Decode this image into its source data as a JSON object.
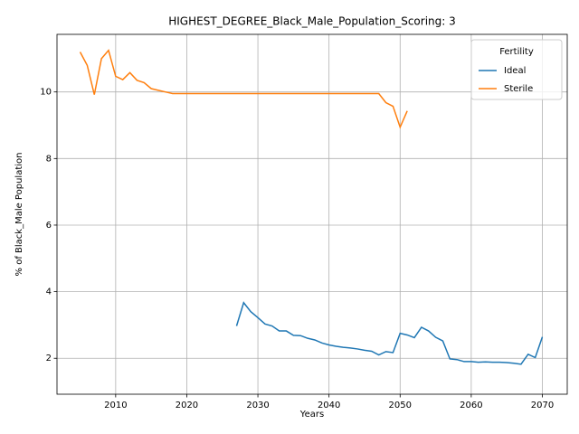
{
  "chart_data": {
    "type": "line",
    "title": "HIGHEST_DEGREE_Black_Male_Population_Scoring: 3",
    "xlabel": "Years",
    "ylabel": "% of Black_Male Population",
    "legend_title": "Fertility",
    "legend": "upper right",
    "grid": true,
    "x": [
      2005,
      2006,
      2007,
      2008,
      2009,
      2010,
      2011,
      2012,
      2013,
      2014,
      2015,
      2016,
      2017,
      2018,
      2019,
      2020,
      2021,
      2022,
      2023,
      2024,
      2025,
      2026,
      2027,
      2028,
      2029,
      2030,
      2031,
      2032,
      2033,
      2034,
      2035,
      2036,
      2037,
      2038,
      2039,
      2040,
      2041,
      2042,
      2043,
      2044,
      2045,
      2046,
      2047,
      2048,
      2049,
      2050,
      2051,
      2052,
      2053,
      2054,
      2055,
      2056,
      2057,
      2058,
      2059,
      2060,
      2061,
      2062,
      2063,
      2064,
      2065,
      2066,
      2067,
      2068,
      2069,
      2070
    ],
    "series": [
      {
        "name": "Ideal",
        "color": "#1f77b4",
        "values": [
          null,
          null,
          null,
          null,
          null,
          null,
          null,
          null,
          null,
          null,
          null,
          null,
          null,
          null,
          null,
          null,
          null,
          null,
          null,
          null,
          null,
          null,
          2.97,
          3.67,
          3.4,
          3.22,
          3.03,
          2.97,
          2.82,
          2.82,
          2.69,
          2.68,
          2.6,
          2.55,
          2.46,
          2.4,
          2.36,
          2.33,
          2.31,
          2.28,
          2.24,
          2.21,
          2.1,
          2.2,
          2.17,
          2.75,
          2.7,
          2.62,
          2.93,
          2.82,
          2.63,
          2.52,
          1.98,
          1.96,
          1.9,
          1.9,
          1.88,
          1.89,
          1.88,
          1.88,
          1.87,
          1.85,
          1.82,
          2.12,
          2.02,
          2.64
        ]
      },
      {
        "name": "Sterile",
        "color": "#ff7f0e",
        "values": [
          11.2,
          10.8,
          9.92,
          11.0,
          11.25,
          10.47,
          10.37,
          10.58,
          10.35,
          10.28,
          10.1,
          10.05,
          10.0,
          9.95,
          9.95,
          9.95,
          9.95,
          9.95,
          9.95,
          9.95,
          9.95,
          9.95,
          9.95,
          9.95,
          9.95,
          9.95,
          9.95,
          9.95,
          9.95,
          9.95,
          9.95,
          9.95,
          9.95,
          9.95,
          9.95,
          9.95,
          9.95,
          9.95,
          9.95,
          9.95,
          9.95,
          9.95,
          9.95,
          9.68,
          9.57,
          8.94,
          9.43,
          null,
          null,
          null,
          null,
          null,
          null,
          null,
          null,
          null,
          null,
          null,
          null,
          null,
          null,
          null,
          null,
          null,
          null,
          null
        ]
      }
    ],
    "xlim": [
      2001.75,
      2073.5
    ],
    "ylim": [
      0.92,
      11.73
    ],
    "xticks": [
      2010,
      2020,
      2030,
      2040,
      2050,
      2060,
      2070
    ],
    "yticks": [
      2,
      4,
      6,
      8,
      10
    ]
  }
}
